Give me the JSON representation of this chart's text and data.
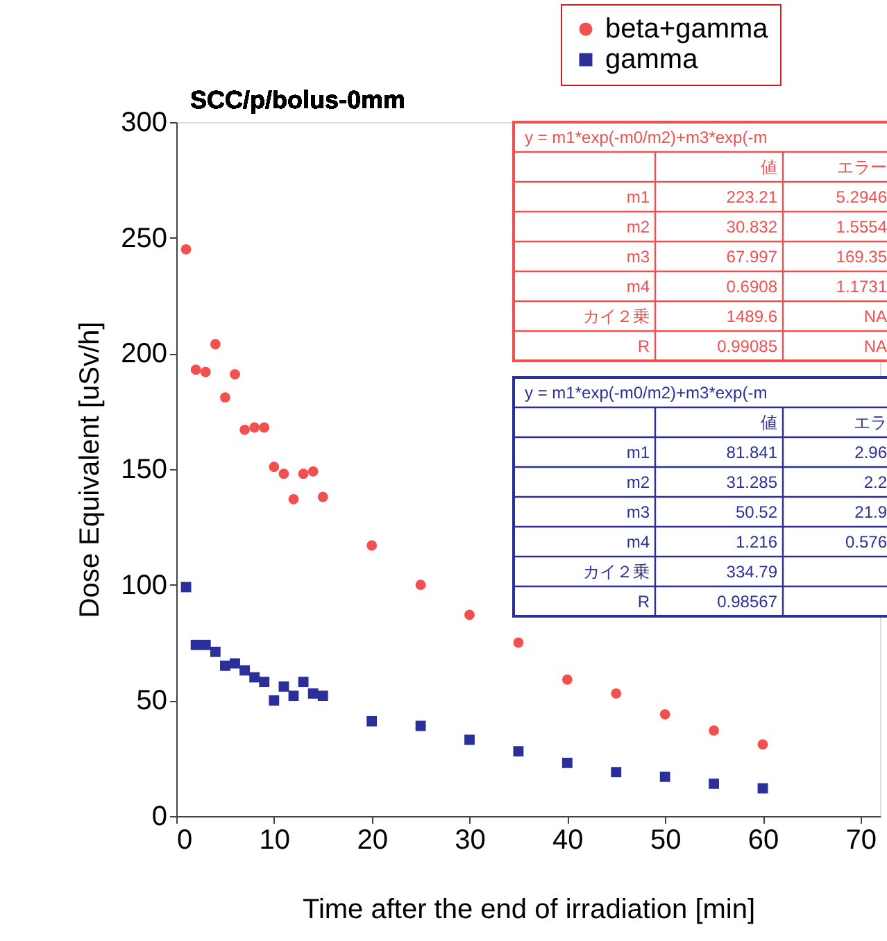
{
  "chart_data": {
    "type": "scatter",
    "title": "SCC/p/bolus-0mm",
    "xlabel": "Time after the end of irradiation [min]",
    "ylabel": "Dose Equivalent [uSv/h]",
    "xlim": [
      0,
      72
    ],
    "xticks": [
      0,
      10,
      20,
      30,
      40,
      50,
      60,
      70
    ],
    "ylim": [
      0,
      300
    ],
    "yticks": [
      0,
      50,
      100,
      150,
      200,
      250,
      300
    ],
    "grid": false,
    "legend": "top right",
    "series": [
      {
        "name": "beta+gamma",
        "color": "#f05050",
        "marker": "circle",
        "x": [
          1,
          2,
          3,
          4,
          5,
          6,
          7,
          8,
          9,
          10,
          11,
          12,
          13,
          14,
          15,
          20,
          25,
          30,
          35,
          40,
          45,
          50,
          55,
          60
        ],
        "values": [
          245,
          193,
          192,
          204,
          181,
          191,
          167,
          168,
          168,
          151,
          148,
          137,
          148,
          149,
          138,
          117,
          100,
          87,
          75,
          59,
          53,
          44,
          37,
          31
        ]
      },
      {
        "name": "gamma",
        "color": "#2a2f9a",
        "marker": "square",
        "x": [
          1,
          2,
          3,
          4,
          5,
          6,
          7,
          8,
          9,
          10,
          11,
          12,
          13,
          14,
          15,
          20,
          25,
          30,
          35,
          40,
          45,
          50,
          55,
          60
        ],
        "values": [
          99,
          74,
          74,
          71,
          65,
          66,
          63,
          60,
          58,
          50,
          56,
          52,
          58,
          53,
          52,
          41,
          39,
          33,
          28,
          23,
          19,
          17,
          14,
          12
        ]
      }
    ],
    "annotations": [
      "y = m1*exp(-m0/m2)+m3*exp(-m",
      "m1",
      "m2",
      "m3",
      "m4",
      "カイ２乗",
      "R",
      "値",
      "223.21",
      "30.832",
      "67.997",
      "0.6908",
      "1489.6",
      "0.99085",
      "エラー",
      "5.2946",
      "1.5554",
      "169.35",
      "1.1731",
      "NA",
      "NA",
      "y = m1*exp(-m0/m2)+m3*exp(-m",
      "m1",
      "m2",
      "m3",
      "m4",
      "カイ２乗",
      "R",
      "値",
      "81.841",
      "31.285",
      "50.52",
      "1.216",
      "334.79",
      "0.98567",
      "エラ",
      "2.96",
      "2.2",
      "21.9",
      "0.576"
    ]
  }
}
